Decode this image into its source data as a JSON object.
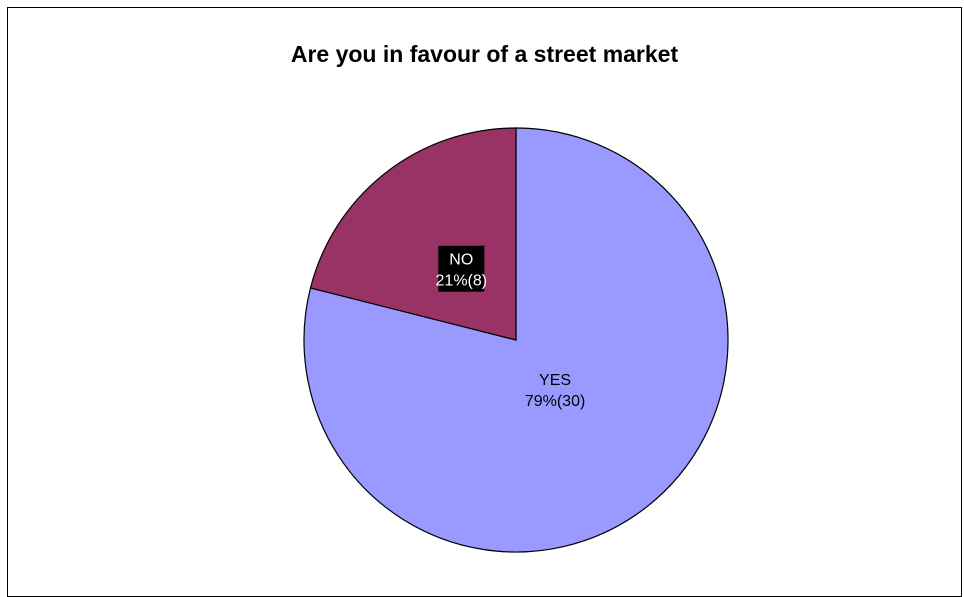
{
  "chart_data": {
    "type": "pie",
    "title": "Are you in favour of a street market",
    "slices": [
      {
        "label": "YES",
        "value": 30,
        "percent": 79,
        "text": "79%(30)",
        "color": "#9999ff"
      },
      {
        "label": "NO",
        "value": 8,
        "percent": 21,
        "text": "21%(8)",
        "color": "#993366"
      }
    ],
    "legend": "none",
    "data_labels": "inside"
  }
}
